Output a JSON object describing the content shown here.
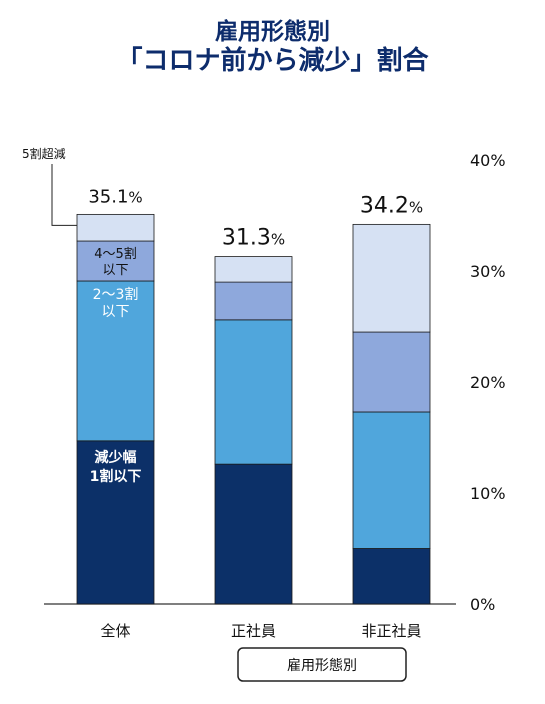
{
  "title": {
    "line1": "雇用形態別",
    "line2": "「コロナ前から減少」割合"
  },
  "legend_button": "雇用形態別",
  "colors": {
    "title": "#0d2c6c",
    "seg1": "#0c3068",
    "seg2": "#50a6dc",
    "seg3": "#8ea8dc",
    "seg4": "#d6e1f3"
  },
  "chart_data": {
    "type": "bar",
    "stacked": true,
    "categories": [
      "全体",
      "正社員",
      "非正社員"
    ],
    "totals": [
      "35.1",
      "31.3",
      "34.2"
    ],
    "total_unit": "%",
    "series": [
      {
        "name": "減少幅\n1割以下",
        "values": [
          14.7,
          12.6,
          5.0
        ]
      },
      {
        "name": "2～3割\n以下",
        "values": [
          14.4,
          13.0,
          12.3
        ]
      },
      {
        "name": "4～5割\n以下",
        "values": [
          3.6,
          3.4,
          7.2
        ]
      },
      {
        "name": "5割超減",
        "values": [
          2.4,
          2.3,
          9.7
        ]
      }
    ],
    "yticks": [
      "0%",
      "10%",
      "20%",
      "30%",
      "40%"
    ],
    "ylim": [
      0,
      40
    ],
    "xlabel": "雇用形態別"
  }
}
